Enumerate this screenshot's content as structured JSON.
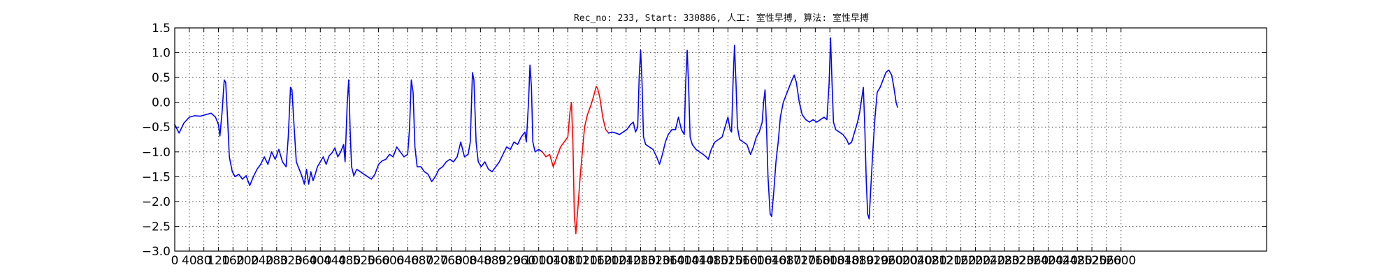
{
  "chart_data": {
    "type": "line",
    "title": "Rec_no: 233, Start: 330886, 人工: 室性早搏, 算法: 室性早搏",
    "xlabel": "",
    "ylabel": "",
    "xlim": [
      0,
      3000
    ],
    "ylim": [
      -3.0,
      1.5
    ],
    "yticks": [
      1.5,
      1.0,
      0.5,
      0.0,
      -0.5,
      -1.0,
      -1.5,
      -2.0,
      -2.5,
      -3.0
    ],
    "ytick_labels": [
      "1.5",
      "1.0",
      "0.5",
      "0.0",
      "−0.5",
      "−1.0",
      "−1.5",
      "−2.0",
      "−2.5",
      "−3.0"
    ],
    "xticks": [
      0,
      40,
      80,
      120,
      160,
      200,
      240,
      280,
      320,
      360,
      400,
      440,
      480,
      520,
      560,
      600,
      640,
      680,
      720,
      760,
      800,
      840,
      880,
      920,
      960,
      1000,
      1040,
      1080,
      1120,
      1160,
      1200,
      1240,
      1280,
      1320,
      1360,
      1400,
      1440,
      1480,
      1520,
      1560,
      1600,
      1640,
      1680,
      1720,
      1760,
      1800,
      1840,
      1880,
      1920,
      1960,
      2000,
      2040,
      2080,
      2120,
      2160,
      2200,
      2240,
      2280,
      2320,
      2360,
      2400,
      2440,
      2480,
      2520,
      2560,
      2600
    ],
    "grid": true,
    "legend": "none",
    "series": [
      {
        "color": "#0000ff",
        "points": [
          [
            0,
            -0.45
          ],
          [
            12,
            -0.62
          ],
          [
            25,
            -0.42
          ],
          [
            40,
            -0.3
          ],
          [
            55,
            -0.27
          ],
          [
            70,
            -0.28
          ],
          [
            85,
            -0.25
          ],
          [
            100,
            -0.22
          ],
          [
            112,
            -0.3
          ],
          [
            120,
            -0.45
          ],
          [
            124,
            -0.68
          ],
          [
            130,
            -0.2
          ],
          [
            136,
            0.45
          ],
          [
            140,
            0.4
          ],
          [
            145,
            -0.3
          ],
          [
            150,
            -1.1
          ],
          [
            158,
            -1.4
          ],
          [
            166,
            -1.5
          ],
          [
            176,
            -1.45
          ],
          [
            186,
            -1.55
          ],
          [
            196,
            -1.48
          ],
          [
            206,
            -1.68
          ],
          [
            216,
            -1.5
          ],
          [
            226,
            -1.35
          ],
          [
            236,
            -1.25
          ],
          [
            246,
            -1.1
          ],
          [
            256,
            -1.25
          ],
          [
            266,
            -1.0
          ],
          [
            276,
            -1.15
          ],
          [
            286,
            -0.95
          ],
          [
            296,
            -1.2
          ],
          [
            306,
            -1.3
          ],
          [
            312,
            -0.7
          ],
          [
            318,
            0.3
          ],
          [
            322,
            0.25
          ],
          [
            328,
            -0.5
          ],
          [
            334,
            -1.2
          ],
          [
            342,
            -1.35
          ],
          [
            350,
            -1.5
          ],
          [
            356,
            -1.65
          ],
          [
            362,
            -1.35
          ],
          [
            368,
            -1.65
          ],
          [
            374,
            -1.4
          ],
          [
            380,
            -1.58
          ],
          [
            386,
            -1.45
          ],
          [
            392,
            -1.3
          ],
          [
            400,
            -1.2
          ],
          [
            408,
            -1.1
          ],
          [
            416,
            -1.25
          ],
          [
            424,
            -1.08
          ],
          [
            432,
            -1.02
          ],
          [
            440,
            -0.92
          ],
          [
            448,
            -1.1
          ],
          [
            456,
            -1.0
          ],
          [
            464,
            -0.85
          ],
          [
            468,
            -1.2
          ],
          [
            474,
            0.0
          ],
          [
            478,
            0.45
          ],
          [
            482,
            -0.6
          ],
          [
            486,
            -1.3
          ],
          [
            492,
            -1.48
          ],
          [
            500,
            -1.35
          ],
          [
            510,
            -1.4
          ],
          [
            520,
            -1.45
          ],
          [
            530,
            -1.5
          ],
          [
            540,
            -1.55
          ],
          [
            550,
            -1.45
          ],
          [
            560,
            -1.25
          ],
          [
            570,
            -1.18
          ],
          [
            580,
            -1.15
          ],
          [
            590,
            -1.05
          ],
          [
            600,
            -1.1
          ],
          [
            610,
            -0.9
          ],
          [
            620,
            -1.0
          ],
          [
            630,
            -1.1
          ],
          [
            640,
            -1.05
          ],
          [
            645,
            -0.55
          ],
          [
            650,
            0.45
          ],
          [
            655,
            0.2
          ],
          [
            660,
            -0.9
          ],
          [
            666,
            -1.3
          ],
          [
            676,
            -1.3
          ],
          [
            686,
            -1.4
          ],
          [
            696,
            -1.45
          ],
          [
            706,
            -1.6
          ],
          [
            716,
            -1.5
          ],
          [
            726,
            -1.35
          ],
          [
            736,
            -1.3
          ],
          [
            746,
            -1.2
          ],
          [
            756,
            -1.15
          ],
          [
            766,
            -1.2
          ],
          [
            776,
            -1.1
          ],
          [
            786,
            -0.8
          ],
          [
            796,
            -1.1
          ],
          [
            806,
            -1.05
          ],
          [
            812,
            -0.8
          ],
          [
            818,
            0.6
          ],
          [
            822,
            0.45
          ],
          [
            828,
            -0.8
          ],
          [
            834,
            -1.2
          ],
          [
            842,
            -1.3
          ],
          [
            852,
            -1.2
          ],
          [
            862,
            -1.35
          ],
          [
            872,
            -1.4
          ],
          [
            882,
            -1.3
          ],
          [
            892,
            -1.2
          ],
          [
            902,
            -1.05
          ],
          [
            912,
            -0.9
          ],
          [
            922,
            -0.95
          ],
          [
            932,
            -0.8
          ],
          [
            942,
            -0.85
          ],
          [
            952,
            -0.7
          ],
          [
            962,
            -0.6
          ],
          [
            966,
            -0.8
          ],
          [
            972,
            0.0
          ],
          [
            976,
            0.75
          ],
          [
            980,
            0.3
          ],
          [
            984,
            -0.8
          ],
          [
            990,
            -1.0
          ],
          [
            1000,
            -0.95
          ],
          [
            1010,
            -1.0
          ]
        ]
      },
      {
        "color": "#ff0000",
        "points": [
          [
            1010,
            -1.0
          ],
          [
            1020,
            -1.1
          ],
          [
            1030,
            -1.05
          ],
          [
            1040,
            -1.3
          ],
          [
            1050,
            -1.1
          ],
          [
            1060,
            -0.9
          ],
          [
            1070,
            -0.8
          ],
          [
            1080,
            -0.7
          ],
          [
            1086,
            -0.2
          ],
          [
            1090,
            0.0
          ],
          [
            1094,
            -0.8
          ],
          [
            1098,
            -2.3
          ],
          [
            1102,
            -2.65
          ],
          [
            1108,
            -2.1
          ],
          [
            1114,
            -1.5
          ],
          [
            1120,
            -1.0
          ],
          [
            1126,
            -0.5
          ],
          [
            1134,
            -0.25
          ],
          [
            1144,
            -0.05
          ],
          [
            1152,
            0.15
          ],
          [
            1158,
            0.32
          ],
          [
            1162,
            0.28
          ],
          [
            1168,
            0.1
          ],
          [
            1176,
            -0.3
          ],
          [
            1184,
            -0.55
          ],
          [
            1192,
            -0.62
          ]
        ]
      },
      {
        "color": "#0000ff",
        "points": [
          [
            1192,
            -0.62
          ],
          [
            1202,
            -0.6
          ],
          [
            1212,
            -0.62
          ],
          [
            1222,
            -0.65
          ],
          [
            1232,
            -0.6
          ],
          [
            1242,
            -0.55
          ],
          [
            1252,
            -0.45
          ],
          [
            1260,
            -0.4
          ],
          [
            1266,
            -0.6
          ],
          [
            1272,
            -0.5
          ],
          [
            1276,
            0.5
          ],
          [
            1280,
            1.05
          ],
          [
            1284,
            0.4
          ],
          [
            1288,
            -0.7
          ],
          [
            1294,
            -0.85
          ],
          [
            1304,
            -0.9
          ],
          [
            1314,
            -0.95
          ],
          [
            1324,
            -1.1
          ],
          [
            1332,
            -1.25
          ],
          [
            1340,
            -1.05
          ],
          [
            1348,
            -0.8
          ],
          [
            1356,
            -0.65
          ],
          [
            1366,
            -0.55
          ],
          [
            1376,
            -0.55
          ],
          [
            1384,
            -0.3
          ],
          [
            1392,
            -0.55
          ],
          [
            1400,
            -0.65
          ],
          [
            1404,
            0.4
          ],
          [
            1408,
            1.05
          ],
          [
            1412,
            0.3
          ],
          [
            1416,
            -0.7
          ],
          [
            1422,
            -0.85
          ],
          [
            1432,
            -0.95
          ],
          [
            1442,
            -1.0
          ],
          [
            1452,
            -1.05
          ],
          [
            1460,
            -1.1
          ],
          [
            1466,
            -1.15
          ],
          [
            1474,
            -0.95
          ],
          [
            1484,
            -0.8
          ],
          [
            1494,
            -0.75
          ],
          [
            1504,
            -0.7
          ],
          [
            1514,
            -0.45
          ],
          [
            1520,
            -0.3
          ],
          [
            1526,
            -0.55
          ],
          [
            1530,
            -0.6
          ],
          [
            1534,
            0.4
          ],
          [
            1538,
            1.15
          ],
          [
            1542,
            0.4
          ],
          [
            1546,
            -0.5
          ],
          [
            1552,
            -0.75
          ],
          [
            1562,
            -0.8
          ],
          [
            1572,
            -0.85
          ],
          [
            1582,
            -1.05
          ],
          [
            1590,
            -0.9
          ],
          [
            1598,
            -0.7
          ],
          [
            1606,
            -0.6
          ],
          [
            1614,
            -0.4
          ],
          [
            1618,
            0.0
          ],
          [
            1622,
            0.25
          ],
          [
            1626,
            -0.5
          ],
          [
            1630,
            -1.5
          ],
          [
            1636,
            -2.25
          ],
          [
            1640,
            -2.3
          ],
          [
            1646,
            -1.8
          ],
          [
            1652,
            -1.2
          ],
          [
            1658,
            -0.8
          ],
          [
            1664,
            -0.3
          ],
          [
            1672,
            0.0
          ],
          [
            1680,
            0.15
          ],
          [
            1688,
            0.3
          ],
          [
            1696,
            0.45
          ],
          [
            1702,
            0.55
          ],
          [
            1708,
            0.4
          ],
          [
            1716,
            0.0
          ],
          [
            1724,
            -0.25
          ],
          [
            1734,
            -0.35
          ],
          [
            1744,
            -0.4
          ],
          [
            1754,
            -0.35
          ],
          [
            1764,
            -0.4
          ],
          [
            1774,
            -0.35
          ],
          [
            1784,
            -0.3
          ],
          [
            1792,
            -0.35
          ],
          [
            1798,
            0.4
          ],
          [
            1802,
            1.3
          ],
          [
            1806,
            0.4
          ],
          [
            1810,
            -0.4
          ],
          [
            1816,
            -0.55
          ],
          [
            1826,
            -0.6
          ],
          [
            1836,
            -0.65
          ],
          [
            1846,
            -0.75
          ],
          [
            1852,
            -0.85
          ],
          [
            1860,
            -0.8
          ],
          [
            1868,
            -0.6
          ],
          [
            1876,
            -0.4
          ],
          [
            1882,
            -0.2
          ],
          [
            1888,
            0.1
          ],
          [
            1892,
            0.3
          ],
          [
            1896,
            -0.5
          ],
          [
            1900,
            -1.6
          ],
          [
            1904,
            -2.25
          ],
          [
            1908,
            -2.35
          ],
          [
            1912,
            -1.8
          ],
          [
            1918,
            -1.0
          ],
          [
            1924,
            -0.3
          ],
          [
            1930,
            0.2
          ],
          [
            1938,
            0.3
          ],
          [
            1946,
            0.45
          ],
          [
            1954,
            0.6
          ],
          [
            1962,
            0.65
          ],
          [
            1970,
            0.55
          ],
          [
            1976,
            0.3
          ],
          [
            1982,
            0.0
          ],
          [
            1986,
            -0.1
          ]
        ]
      }
    ]
  }
}
